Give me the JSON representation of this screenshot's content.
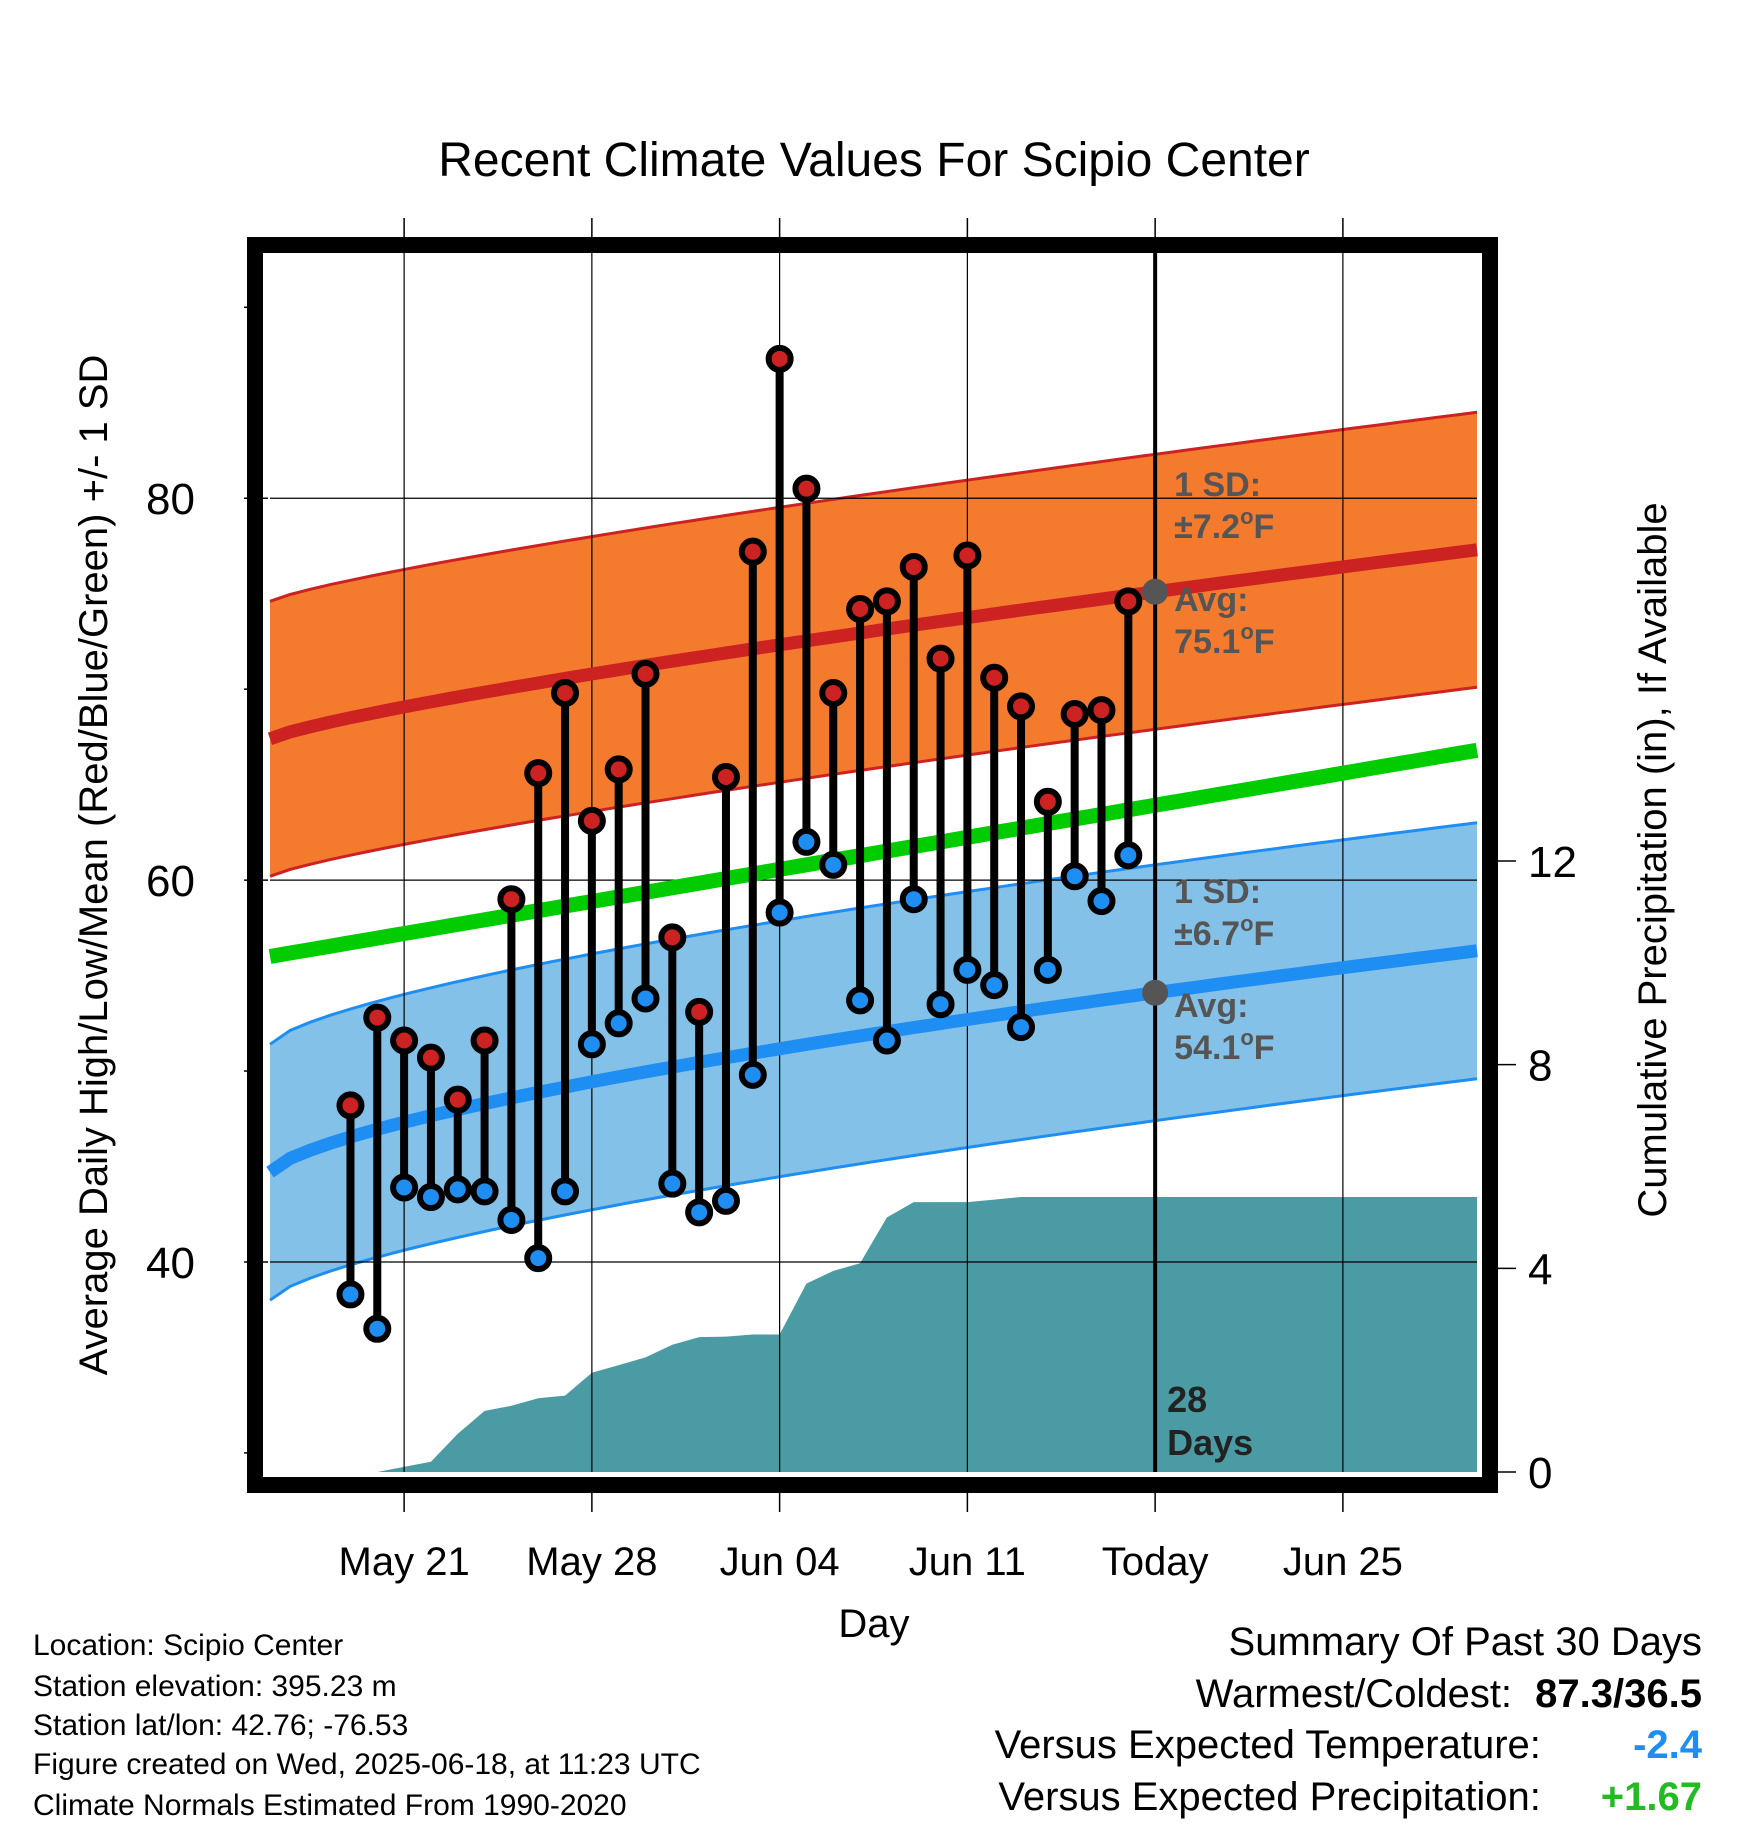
{
  "chart_data": {
    "type": "line",
    "title": "Recent Climate Values For Scipio Center",
    "xlabel": "Day",
    "ylabel": "Average Daily High/Low/Mean (Red/Blue/Green) +/- 1 SD",
    "y2label": "Cumulative Precipitation (in), If Available",
    "x_range": [
      "2025-05-16",
      "2025-06-30"
    ],
    "ylim": [
      29,
      93
    ],
    "y2lim": [
      0,
      24
    ],
    "yticks": [
      40,
      60,
      80
    ],
    "y2ticks": [
      0,
      4,
      8,
      12
    ],
    "xticks": [
      {
        "date": "2025-05-21",
        "label": "May 21"
      },
      {
        "date": "2025-05-28",
        "label": "May 28"
      },
      {
        "date": "2025-06-04",
        "label": "Jun 04"
      },
      {
        "date": "2025-06-11",
        "label": "Jun 11"
      },
      {
        "date": "2025-06-18",
        "label": "Today"
      },
      {
        "date": "2025-06-25",
        "label": "Jun 25"
      }
    ],
    "grid": true,
    "today": "2025-06-18",
    "days_label": [
      "28",
      "Days"
    ],
    "observed": {
      "dates": [
        "2025-05-19",
        "2025-05-20",
        "2025-05-21",
        "2025-05-22",
        "2025-05-23",
        "2025-05-24",
        "2025-05-25",
        "2025-05-26",
        "2025-05-27",
        "2025-05-28",
        "2025-05-29",
        "2025-05-30",
        "2025-05-31",
        "2025-06-01",
        "2025-06-02",
        "2025-06-03",
        "2025-06-04",
        "2025-06-05",
        "2025-06-06",
        "2025-06-07",
        "2025-06-08",
        "2025-06-09",
        "2025-06-10",
        "2025-06-11",
        "2025-06-12",
        "2025-06-13",
        "2025-06-14",
        "2025-06-15",
        "2025-06-16",
        "2025-06-17"
      ],
      "highs": [
        48.2,
        52.8,
        51.6,
        50.7,
        48.5,
        51.6,
        59.0,
        65.6,
        69.8,
        63.1,
        65.8,
        70.8,
        57.0,
        53.1,
        65.4,
        77.2,
        87.3,
        80.5,
        69.8,
        74.2,
        74.6,
        76.4,
        71.6,
        77.0,
        70.6,
        69.1,
        64.1,
        68.7,
        68.9,
        74.6
      ],
      "lows": [
        38.3,
        36.5,
        43.9,
        43.4,
        43.8,
        43.7,
        42.2,
        40.2,
        43.7,
        51.4,
        52.5,
        53.8,
        44.1,
        42.6,
        43.2,
        49.8,
        58.3,
        62.0,
        60.8,
        53.7,
        51.6,
        59.0,
        53.5,
        55.3,
        54.5,
        52.3,
        55.3,
        60.2,
        58.9,
        61.3
      ]
    },
    "normal_high": {
      "start": 67.4,
      "today": 75.1,
      "end": 77.3,
      "sd": 7.2
    },
    "normal_low": {
      "start": 44.7,
      "today": 54.1,
      "end": 56.3,
      "sd": 6.7
    },
    "normal_mean": {
      "start": 56.0,
      "end": 66.8
    },
    "high_annotation": {
      "sd_label": "1 SD:",
      "sd_value": "±7.2",
      "avg_label": "Avg:",
      "avg_value": "75.1",
      "unit": "F",
      "degree": "o"
    },
    "low_annotation": {
      "sd_label": "1 SD:",
      "sd_value": "±6.7",
      "avg_label": "Avg:",
      "avg_value": "54.1",
      "unit": "F",
      "degree": "o"
    },
    "precipitation": {
      "dates": [
        "2025-05-20",
        "2025-05-21",
        "2025-05-22",
        "2025-05-23",
        "2025-05-24",
        "2025-05-25",
        "2025-05-26",
        "2025-05-27",
        "2025-05-28",
        "2025-05-29",
        "2025-05-30",
        "2025-05-31",
        "2025-06-01",
        "2025-06-02",
        "2025-06-03",
        "2025-06-04",
        "2025-06-05",
        "2025-06-06",
        "2025-06-07",
        "2025-06-08",
        "2025-06-09",
        "2025-06-10",
        "2025-06-11",
        "2025-06-12",
        "2025-06-13",
        "2025-06-14",
        "2025-06-30"
      ],
      "values": [
        0.0,
        0.1,
        0.2,
        0.75,
        1.2,
        1.3,
        1.45,
        1.5,
        1.95,
        2.1,
        2.25,
        2.5,
        2.65,
        2.66,
        2.7,
        2.7,
        3.7,
        3.95,
        4.1,
        5.0,
        5.3,
        5.3,
        5.3,
        5.35,
        5.4,
        5.4,
        5.4
      ]
    }
  },
  "colors": {
    "high": "#cc2222",
    "high_band": "#f47a2e",
    "low": "#1f8ef2",
    "low_band": "#84c1e8",
    "mean": "#00cc00",
    "precip": "#4a9ba3",
    "annotation": "#555555",
    "negative": "#1f8ef2",
    "positive": "#22bb22"
  },
  "footer": {
    "location": "Location: Scipio Center",
    "elevation": "Station elevation: 395.23 m",
    "latlon": "Station lat/lon: 42.76; -76.53",
    "created": "Figure created on Wed, 2025-06-18, at 11:23 UTC",
    "normals": "Climate Normals Estimated From 1990-2020"
  },
  "summary": {
    "title": "Summary Of Past 30 Days",
    "warmest_label": "Warmest/Coldest:",
    "warmest_value": "87.3/36.5",
    "temp_label": "Versus Expected Temperature:",
    "temp_value": "-2.4",
    "precip_label": "Versus Expected Precipitation:",
    "precip_value": "+1.67"
  }
}
